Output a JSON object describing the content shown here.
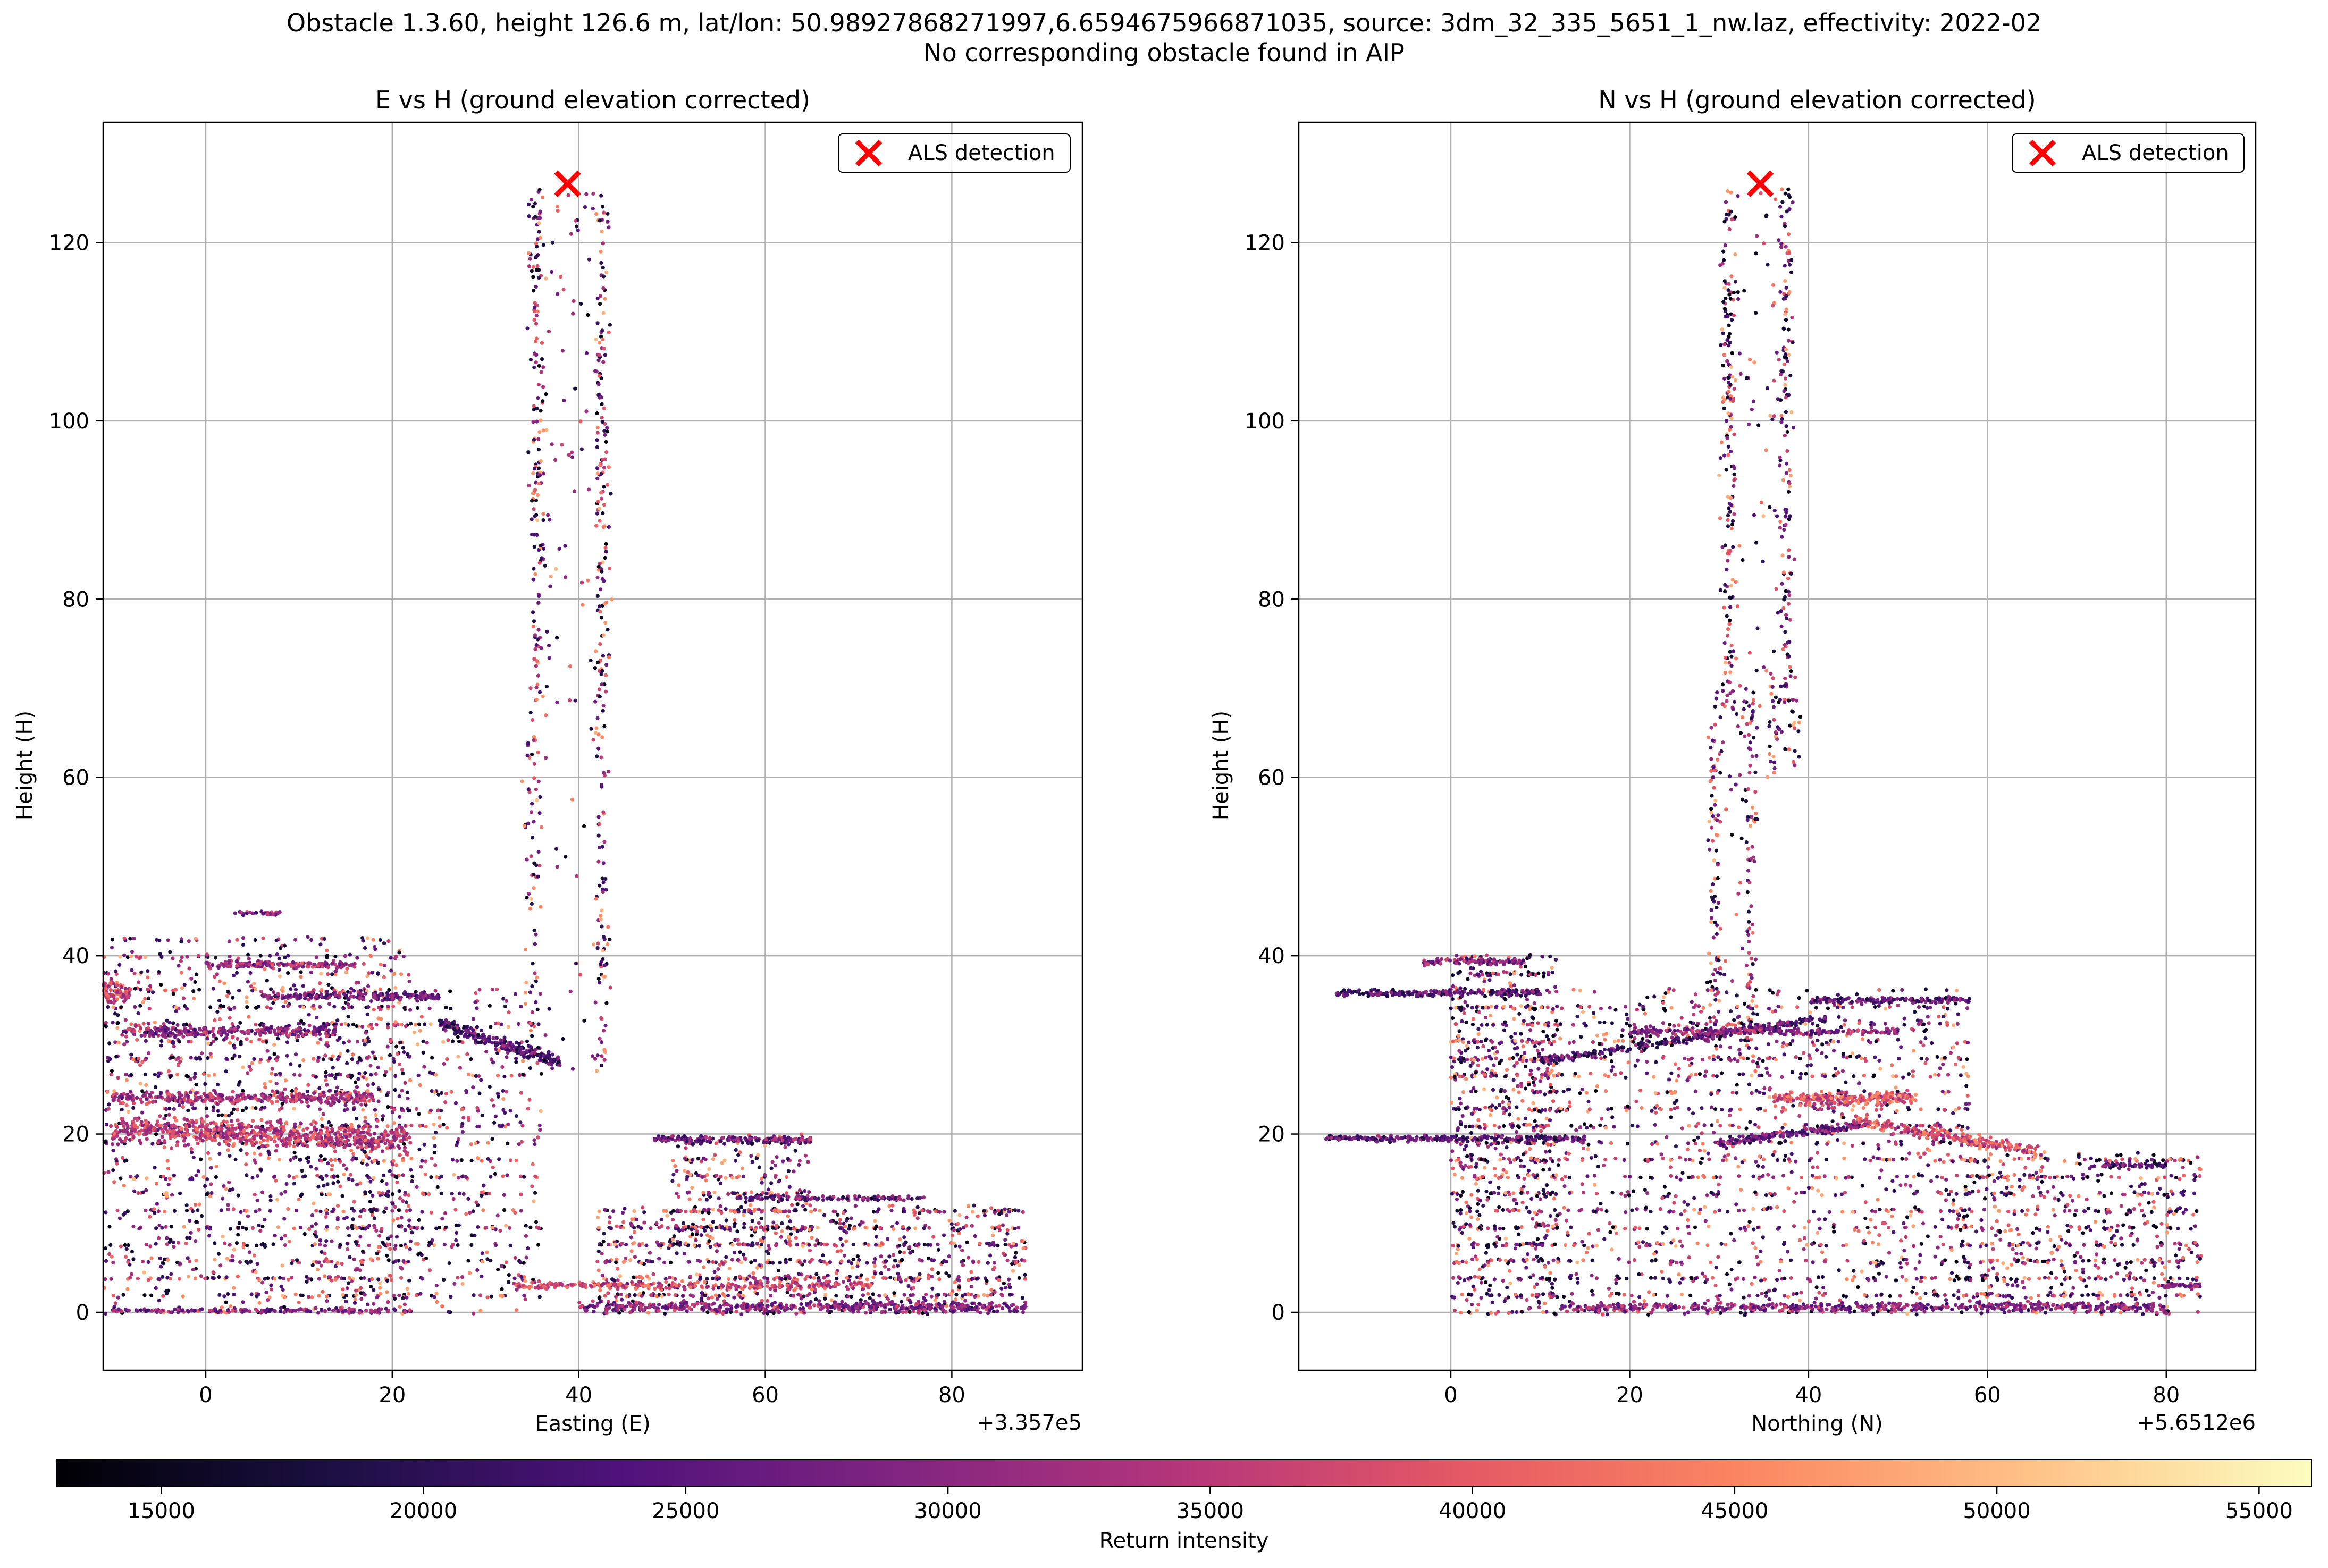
{
  "figure": {
    "suptitle_line1": "Obstacle 1.3.60, height 126.6 m, lat/lon: 50.98927868271997,6.6594675966871035, source: 3dm_32_335_5651_1_nw.laz, effectivity: 2022-02",
    "suptitle_line2": "No corresponding obstacle found in AIP"
  },
  "chart_data": [
    {
      "type": "scatter",
      "title": "E vs H (ground elevation corrected)",
      "xlabel": "Easting (E)",
      "ylabel": "Height (H)",
      "x_offset_label": "+3.357e5",
      "xlim": [
        -11,
        94
      ],
      "ylim": [
        -6.5,
        133.5
      ],
      "xticks": [
        0,
        20,
        40,
        60,
        80
      ],
      "yticks": [
        0,
        20,
        40,
        60,
        80,
        100,
        120
      ],
      "grid": true,
      "legend": {
        "position": "top-right",
        "entries": [
          "ALS detection"
        ]
      },
      "detection": {
        "x": 38.8,
        "y": 126.6,
        "label": "ALS detection",
        "color": "#ff0000"
      },
      "structures": [
        {
          "kind": "column",
          "x": [
            35.5,
            42.5
          ],
          "y": [
            68,
            126
          ],
          "density": 380
        },
        {
          "kind": "column",
          "x": [
            35,
            42.5
          ],
          "y": [
            27,
            68
          ],
          "density": 170
        },
        {
          "kind": "cluster",
          "x": [
            -11,
            22
          ],
          "y": [
            0,
            42
          ],
          "density": 1400
        },
        {
          "kind": "cluster",
          "x": [
            12,
            36
          ],
          "y": [
            0,
            36
          ],
          "density": 700
        },
        {
          "kind": "cluster",
          "x": [
            42,
            88
          ],
          "y": [
            0,
            12
          ],
          "density": 1000
        },
        {
          "kind": "cluster",
          "x": [
            50,
            65
          ],
          "y": [
            8,
            20
          ],
          "density": 280
        },
        {
          "kind": "band",
          "from": [
            -10,
            20.5
          ],
          "to": [
            22,
            19.5
          ],
          "width": 1.8,
          "density": 650,
          "intensity": 40000
        },
        {
          "kind": "band",
          "from": [
            -10,
            24
          ],
          "to": [
            18,
            24
          ],
          "width": 0.8,
          "density": 320,
          "intensity": 36000
        },
        {
          "kind": "band",
          "from": [
            -9,
            31.5
          ],
          "to": [
            14,
            31.5
          ],
          "width": 0.8,
          "density": 260,
          "intensity": 30000
        },
        {
          "kind": "band",
          "from": [
            0,
            39
          ],
          "to": [
            16,
            39
          ],
          "width": 0.5,
          "density": 160,
          "intensity": 33000
        },
        {
          "kind": "band",
          "from": [
            -11,
            36
          ],
          "to": [
            -8,
            36
          ],
          "width": 1.2,
          "density": 80,
          "intensity": 42000
        },
        {
          "kind": "band",
          "from": [
            6,
            35.5
          ],
          "to": [
            25,
            35.5
          ],
          "width": 0.6,
          "density": 180,
          "intensity": 26000
        },
        {
          "kind": "band",
          "from": [
            25,
            32.5
          ],
          "to": [
            38,
            28
          ],
          "width": 0.9,
          "density": 220,
          "intensity": 20000
        },
        {
          "kind": "band",
          "from": [
            48,
            19.5
          ],
          "to": [
            65,
            19.3
          ],
          "width": 0.4,
          "density": 160,
          "intensity": 26000
        },
        {
          "kind": "band",
          "from": [
            57,
            12.8
          ],
          "to": [
            77,
            12.8
          ],
          "width": 0.3,
          "density": 120,
          "intensity": 24000
        },
        {
          "kind": "band",
          "from": [
            33,
            3
          ],
          "to": [
            72,
            3
          ],
          "width": 0.5,
          "density": 280,
          "intensity": 42000
        },
        {
          "kind": "band",
          "from": [
            40,
            0.6
          ],
          "to": [
            88,
            0.6
          ],
          "width": 0.7,
          "density": 450,
          "intensity": 30000
        },
        {
          "kind": "band",
          "from": [
            -10,
            0.2
          ],
          "to": [
            22,
            0.2
          ],
          "width": 0.3,
          "density": 150,
          "intensity": 28000
        },
        {
          "kind": "band",
          "from": [
            3,
            44.8
          ],
          "to": [
            8,
            44.8
          ],
          "width": 0.3,
          "density": 30,
          "intensity": 30000
        }
      ]
    },
    {
      "type": "scatter",
      "title": "N vs H (ground elevation corrected)",
      "xlabel": "Northing (N)",
      "ylabel": "Height (H)",
      "x_offset_label": "+5.6512e6",
      "xlim": [
        -17,
        90
      ],
      "ylim": [
        -6.5,
        133.5
      ],
      "xticks": [
        0,
        20,
        40,
        60,
        80
      ],
      "yticks": [
        0,
        20,
        40,
        60,
        80,
        100,
        120
      ],
      "grid": true,
      "legend": {
        "position": "top-right",
        "entries": [
          "ALS detection"
        ]
      },
      "detection": {
        "x": 34.6,
        "y": 126.6,
        "label": "ALS detection",
        "color": "#ff0000"
      },
      "structures": [
        {
          "kind": "column",
          "x": [
            31,
            37.5
          ],
          "y": [
            68,
            126
          ],
          "density": 380
        },
        {
          "kind": "column",
          "x": [
            29.5,
            33.5
          ],
          "y": [
            28,
            70
          ],
          "density": 240
        },
        {
          "kind": "column",
          "x": [
            36,
            38.5
          ],
          "y": [
            60,
            72
          ],
          "density": 50
        },
        {
          "kind": "cluster",
          "x": [
            0,
            12
          ],
          "y": [
            0,
            40
          ],
          "density": 900
        },
        {
          "kind": "cluster",
          "x": [
            9,
            58
          ],
          "y": [
            0,
            36
          ],
          "density": 1500
        },
        {
          "kind": "cluster",
          "x": [
            56,
            84
          ],
          "y": [
            0,
            18
          ],
          "density": 700
        },
        {
          "kind": "band",
          "from": [
            -13,
            35.8
          ],
          "to": [
            10,
            35.8
          ],
          "width": 0.4,
          "density": 200,
          "intensity": 20000
        },
        {
          "kind": "band",
          "from": [
            -14,
            19.5
          ],
          "to": [
            15,
            19.5
          ],
          "width": 0.4,
          "density": 240,
          "intensity": 22000
        },
        {
          "kind": "band",
          "from": [
            -3,
            39.3
          ],
          "to": [
            8,
            39.3
          ],
          "width": 0.4,
          "density": 90,
          "intensity": 30000
        },
        {
          "kind": "band",
          "from": [
            9,
            28
          ],
          "to": [
            42,
            33
          ],
          "width": 0.5,
          "density": 260,
          "intensity": 20000
        },
        {
          "kind": "band",
          "from": [
            20,
            31.5
          ],
          "to": [
            50,
            31.5
          ],
          "width": 0.5,
          "density": 240,
          "intensity": 30000
        },
        {
          "kind": "band",
          "from": [
            30,
            19
          ],
          "to": [
            46,
            21
          ],
          "width": 0.5,
          "density": 180,
          "intensity": 24000
        },
        {
          "kind": "band",
          "from": [
            45,
            21.5
          ],
          "to": [
            66,
            18
          ],
          "width": 0.8,
          "density": 240,
          "intensity": 43000
        },
        {
          "kind": "band",
          "from": [
            36,
            24
          ],
          "to": [
            52,
            24
          ],
          "width": 0.8,
          "density": 240,
          "intensity": 44000
        },
        {
          "kind": "band",
          "from": [
            40,
            35
          ],
          "to": [
            58,
            35
          ],
          "width": 0.4,
          "density": 140,
          "intensity": 22000
        },
        {
          "kind": "band",
          "from": [
            12,
            0.6
          ],
          "to": [
            80,
            0.6
          ],
          "width": 0.6,
          "density": 480,
          "intensity": 30000
        },
        {
          "kind": "band",
          "from": [
            73,
            16.5
          ],
          "to": [
            80,
            16.5
          ],
          "width": 0.3,
          "density": 50,
          "intensity": 20000
        },
        {
          "kind": "band",
          "from": [
            79,
            3
          ],
          "to": [
            84,
            3
          ],
          "width": 0.3,
          "density": 40,
          "intensity": 32000
        }
      ]
    }
  ],
  "colorbar": {
    "label": "Return intensity",
    "min": 13000,
    "max": 56000,
    "ticks": [
      15000,
      20000,
      25000,
      30000,
      35000,
      40000,
      45000,
      50000,
      55000
    ],
    "colormap": "magma",
    "stops": [
      "#000004",
      "#1c1044",
      "#4f127b",
      "#812581",
      "#b5367a",
      "#e55964",
      "#fb8761",
      "#fec287",
      "#fcfdbf"
    ]
  }
}
